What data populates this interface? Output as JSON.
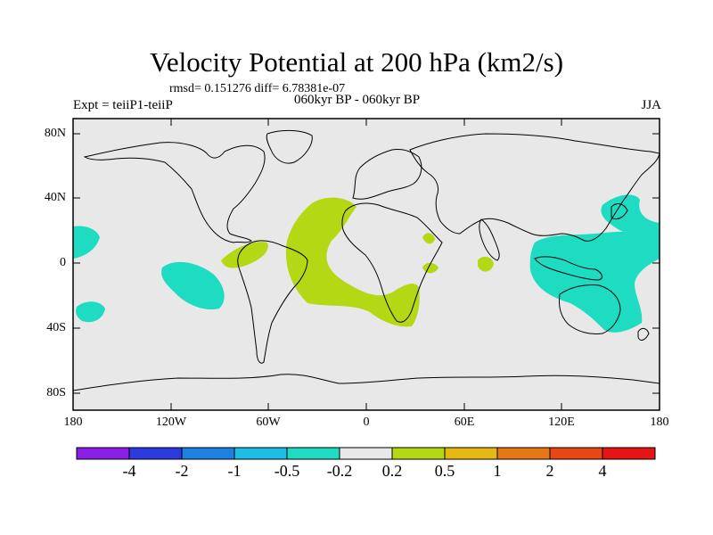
{
  "title": "Velocity Potential at 200 hPa (km2/s)",
  "stats": "rmsd= 0.151276 diff= 6.78381e-07",
  "experiment": "Expt = teiiP1-teiiP",
  "period": "060kyr BP - 060kyr BP",
  "season": "JJA",
  "lat_ticks": [
    "80N",
    "40N",
    "0",
    "40S",
    "80S"
  ],
  "lon_ticks": [
    "180",
    "120W",
    "60W",
    "0",
    "60E",
    "120E",
    "180"
  ],
  "colorbar": {
    "colors": [
      "#8a1ee6",
      "#2d3ae0",
      "#1e80e0",
      "#1ebde6",
      "#1edcc2",
      "#e8e8e8",
      "#b4d814",
      "#e6b814",
      "#e67814",
      "#e64814",
      "#e61414"
    ],
    "labels": [
      "-4",
      "-2",
      "-1",
      "-0.5",
      "-0.2",
      "0.2",
      "0.5",
      "1",
      "2",
      "4"
    ]
  },
  "map": {
    "background_color": "#e8e8e8",
    "positive_color": "#b4d814",
    "negative_color": "#1edcc2",
    "coastline_color": "#000000"
  }
}
